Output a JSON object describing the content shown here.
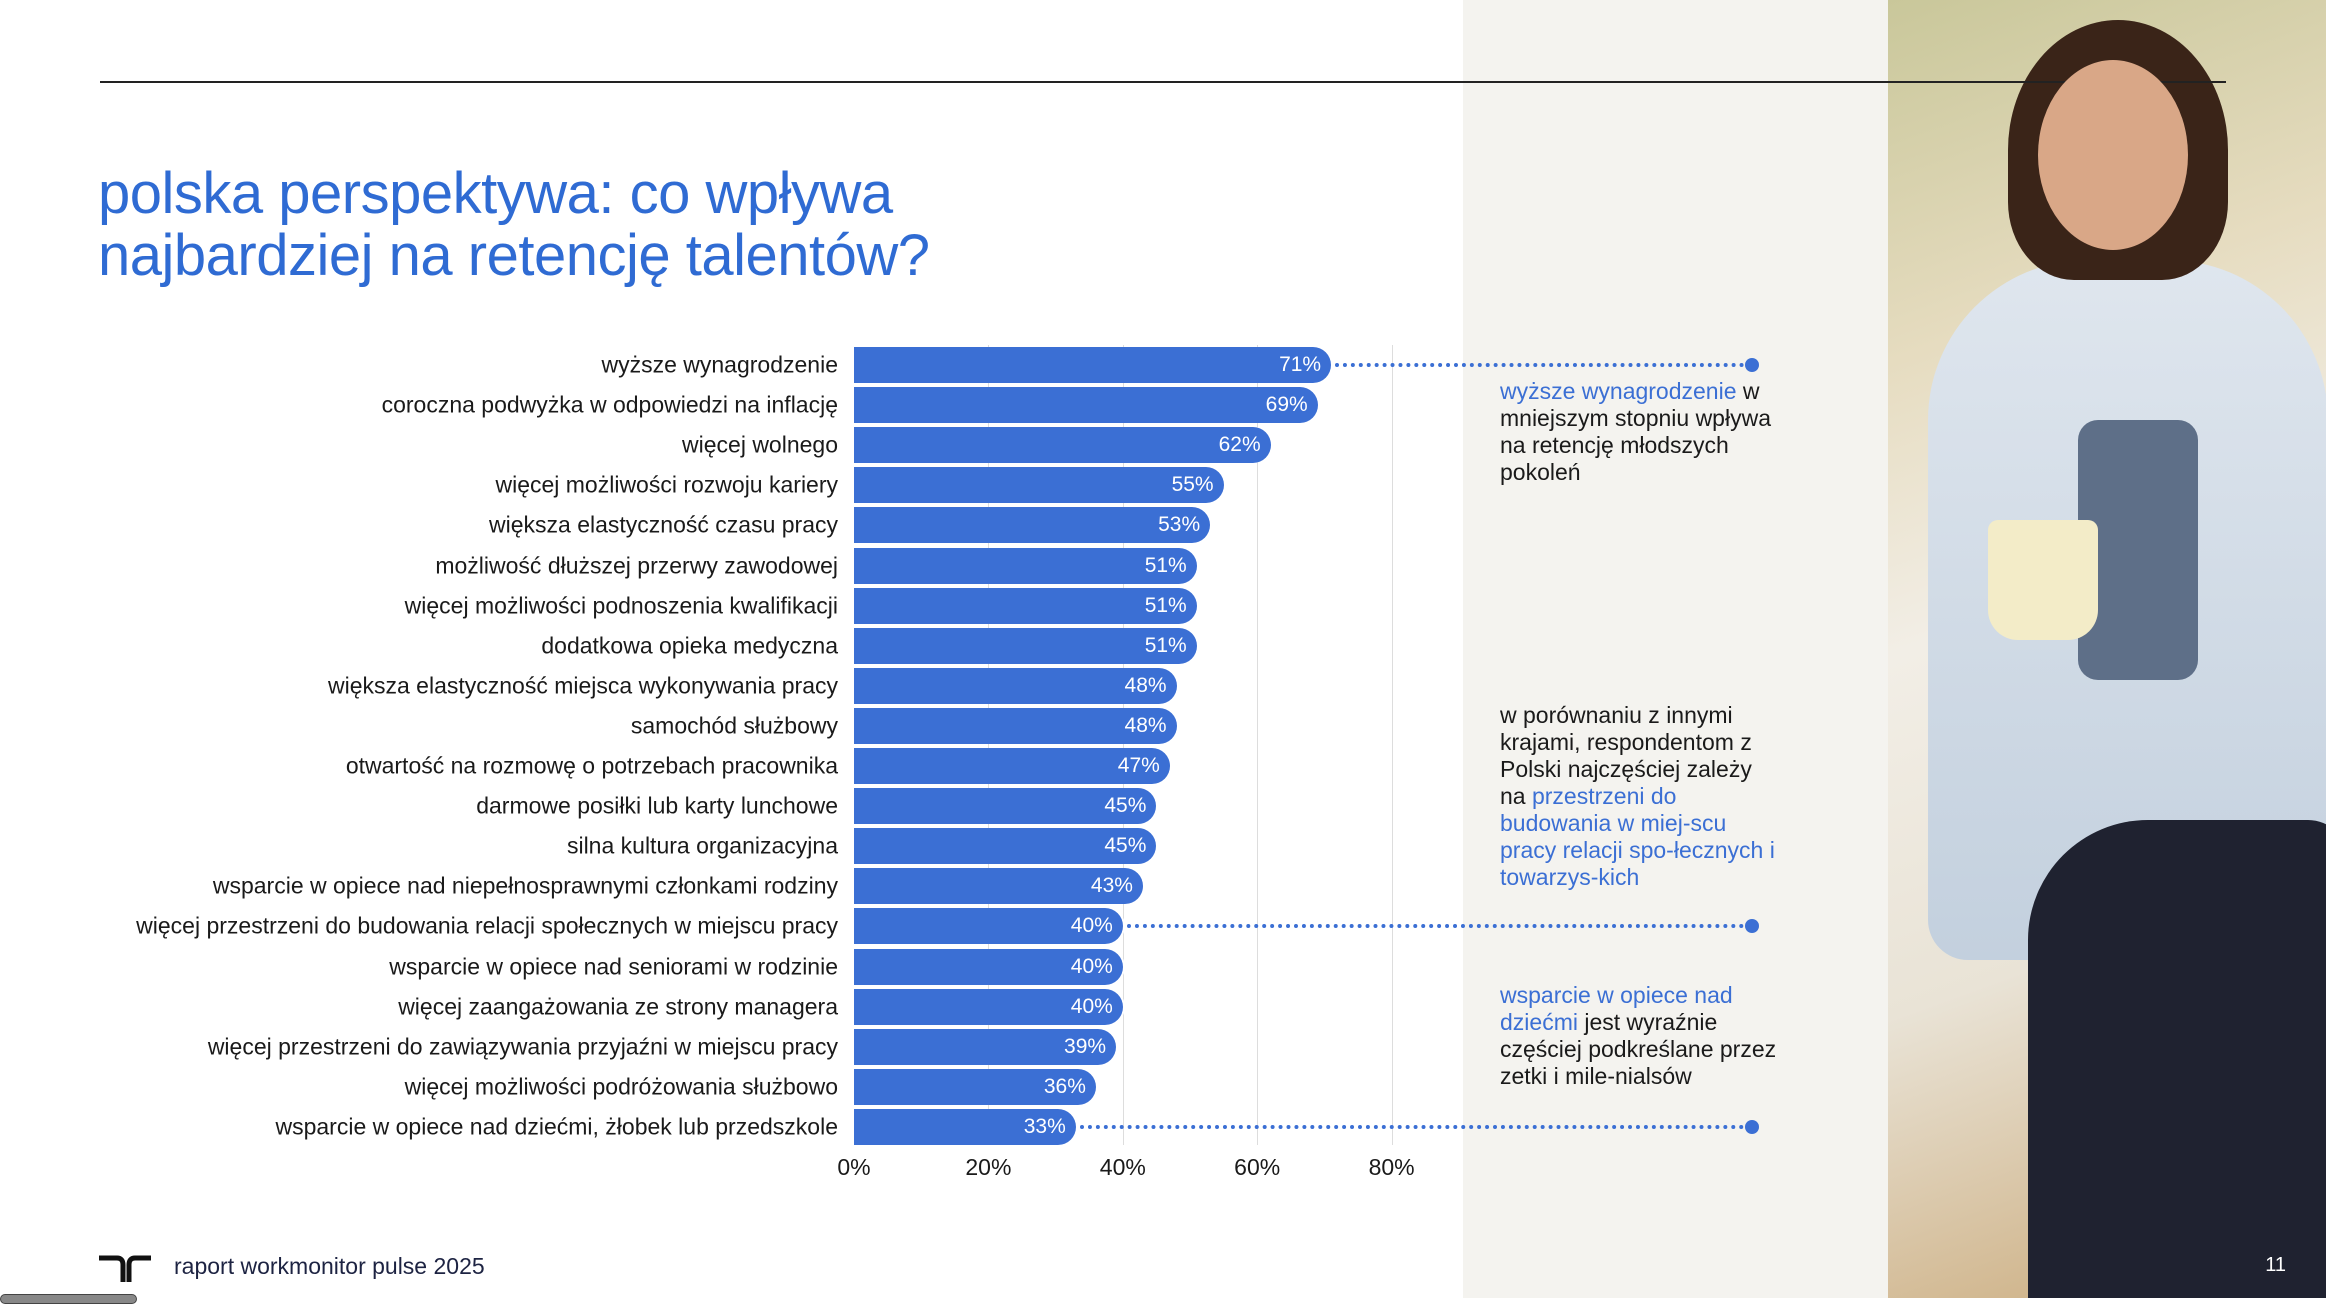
{
  "title_lines": [
    "polska perspektywa: co wpływa",
    "najbardziej na retencję talentów?"
  ],
  "chart_data": {
    "type": "bar",
    "orientation": "horizontal",
    "categories": [
      "wyższe wynagrodzenie",
      "coroczna podwyżka w odpowiedzi na inflację",
      "więcej wolnego",
      "więcej możliwości rozwoju kariery",
      "większa elastyczność czasu pracy",
      "możliwość dłuższej przerwy zawodowej",
      "więcej możliwości podnoszenia kwalifikacji",
      "dodatkowa opieka medyczna",
      "większa elastyczność miejsca wykonywania pracy",
      "samochód służbowy",
      "otwartość na rozmowę o potrzebach pracownika",
      "darmowe posiłki lub karty lunchowe",
      "silna kultura organizacyjna",
      "wsparcie w opiece nad niepełnosprawnymi członkami rodziny",
      "więcej przestrzeni do budowania relacji społecznych w miejscu pracy",
      "wsparcie w opiece nad seniorami w rodzinie",
      "więcej zaangażowania ze strony managera",
      "więcej przestrzeni do zawiązywania przyjaźni w miejscu pracy",
      "więcej możliwości podróżowania służbowo",
      "wsparcie w opiece nad dziećmi, żłobek lub przedszkole"
    ],
    "values": [
      71,
      69,
      62,
      55,
      53,
      51,
      51,
      51,
      48,
      48,
      47,
      45,
      45,
      43,
      40,
      40,
      40,
      39,
      36,
      33
    ],
    "value_labels": [
      "71%",
      "69%",
      "62%",
      "55%",
      "53%",
      "51%",
      "51%",
      "51%",
      "48%",
      "48%",
      "47%",
      "45%",
      "45%",
      "43%",
      "40%",
      "40%",
      "40%",
      "39%",
      "36%",
      "33%"
    ],
    "xlim": [
      0,
      90
    ],
    "xticks": [
      0,
      20,
      40,
      60,
      80
    ],
    "xtick_labels": [
      "0%",
      "20%",
      "40%",
      "60%",
      "80%"
    ],
    "grid": true,
    "bar_color": "#3b6fd4"
  },
  "annotations": [
    {
      "parts": [
        {
          "text": "wyższe wynagrodzenie",
          "hl": true
        },
        {
          "text": " w mniejszym stopniu wpływa na retencję młodszych pokoleń",
          "hl": false
        }
      ],
      "row": 0
    },
    {
      "parts": [
        {
          "text": "w porównaniu z innymi krajami, respondentom z Polski najczęściej zależy na ",
          "hl": false
        },
        {
          "text": "przestrzeni do budowania w miej-scu pracy relacji spo-łecznych i towarzys-kich",
          "hl": true
        }
      ],
      "row": 14
    },
    {
      "parts": [
        {
          "text": "wsparcie w opiece nad dziećmi",
          "hl": true
        },
        {
          "text": " jest wyraźnie częściej podkreślane przez zetki i mile-nialsów",
          "hl": false
        }
      ],
      "row": 19
    }
  ],
  "footer": {
    "text": "raport workmonitor pulse 2025",
    "page": "11"
  },
  "accent": "#3b6fd4"
}
